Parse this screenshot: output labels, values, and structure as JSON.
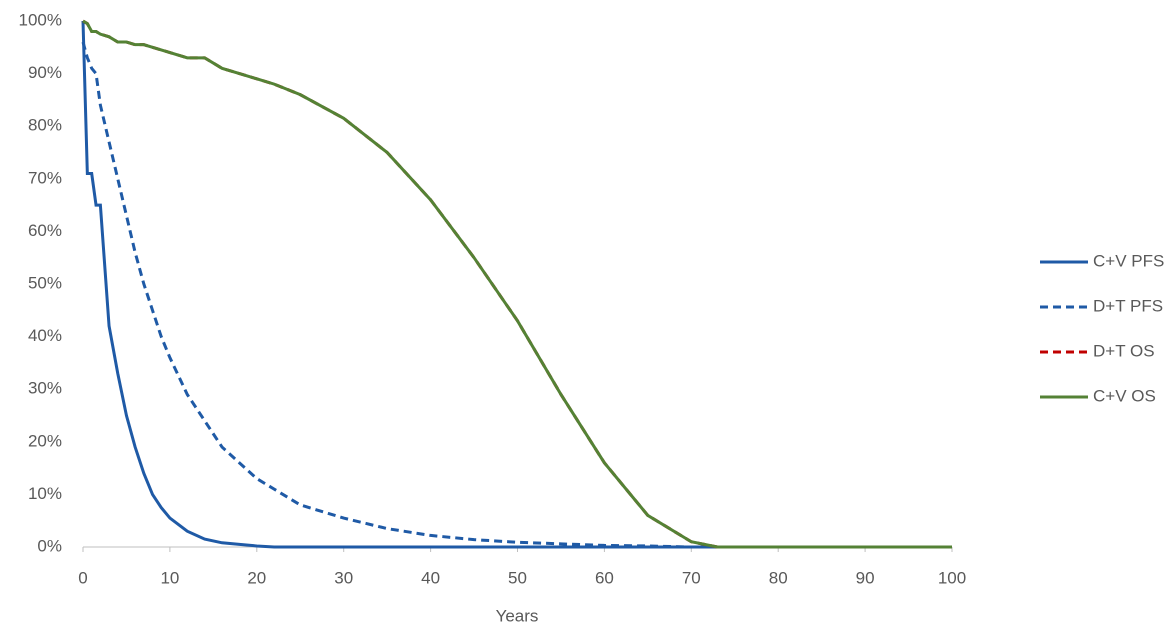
{
  "chart_data": {
    "type": "line",
    "x_label": "Years",
    "x": [
      0,
      0.5,
      1,
      1.5,
      2,
      3,
      4,
      5,
      6,
      7,
      8,
      9,
      10,
      12,
      14,
      16,
      18,
      20,
      22,
      25,
      30,
      35,
      40,
      45,
      50,
      55,
      60,
      65,
      70,
      73,
      80,
      90,
      100
    ],
    "series": [
      {
        "name": "C+V PFS",
        "color": "#1f5aa6",
        "line_style": "solid",
        "values": [
          100,
          71,
          71,
          65,
          65,
          42,
          33,
          25,
          19,
          14,
          10,
          7.5,
          5.5,
          3,
          1.5,
          0.8,
          0.5,
          0.2,
          0,
          0,
          0,
          0,
          0,
          0,
          0,
          0,
          0,
          0,
          0,
          0,
          0,
          0,
          0
        ]
      },
      {
        "name": "D+T PFS",
        "color": "#1f5aa6",
        "line_style": "dashed",
        "values": [
          96,
          93,
          91,
          90,
          84,
          77,
          70,
          63,
          56,
          50,
          45,
          40,
          36,
          29,
          24,
          19,
          16,
          13,
          11,
          8,
          5.5,
          3.5,
          2.2,
          1.4,
          0.9,
          0.6,
          0.3,
          0.2,
          0,
          0,
          0,
          0,
          0
        ]
      },
      {
        "name": "D+T OS",
        "color": "#c00000",
        "line_style": "dashed",
        "values": [
          100,
          99.5,
          98,
          98,
          97.5,
          97,
          96,
          96,
          95.5,
          95.5,
          95,
          94.5,
          94,
          93,
          93,
          91,
          90,
          89,
          88,
          86,
          81.5,
          75,
          66,
          55,
          43,
          29,
          16,
          6,
          1,
          0,
          0,
          0,
          0
        ]
      },
      {
        "name": "C+V OS",
        "color": "#548235",
        "line_style": "solid",
        "values": [
          100,
          99.5,
          98,
          98,
          97.5,
          97,
          96,
          96,
          95.5,
          95.5,
          95,
          94.5,
          94,
          93,
          93,
          91,
          90,
          89,
          88,
          86,
          81.5,
          75,
          66,
          55,
          43,
          29,
          16,
          6,
          1,
          0,
          0,
          0,
          0
        ]
      }
    ],
    "xlim": [
      0,
      100
    ],
    "xticks": [
      0,
      10,
      20,
      30,
      40,
      50,
      60,
      70,
      80,
      90,
      100
    ],
    "ylim": [
      0,
      100
    ],
    "yticks": [
      {
        "value": 0,
        "label": "0%"
      },
      {
        "value": 10,
        "label": "10%"
      },
      {
        "value": 20,
        "label": "20%"
      },
      {
        "value": 30,
        "label": "30%"
      },
      {
        "value": 40,
        "label": "40%"
      },
      {
        "value": 50,
        "label": "50%"
      },
      {
        "value": 60,
        "label": "60%"
      },
      {
        "value": 70,
        "label": "70%"
      },
      {
        "value": 80,
        "label": "80%"
      },
      {
        "value": 90,
        "label": "90%"
      },
      {
        "value": 100,
        "label": "100%"
      }
    ],
    "legend": "right",
    "grid": false
  }
}
